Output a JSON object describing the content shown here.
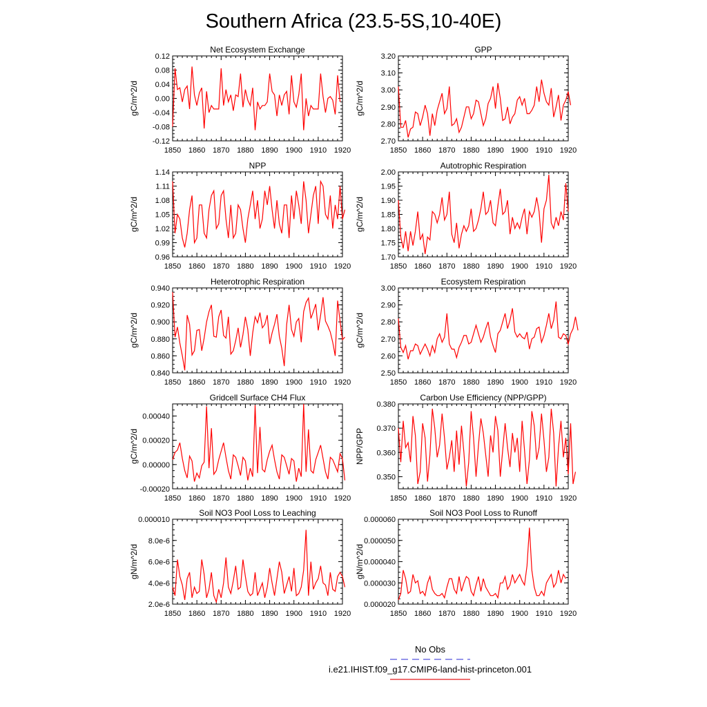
{
  "figure": {
    "title": "Southern Africa (23.5-5S,10-40E)",
    "legend": [
      {
        "label": "No Obs",
        "color": "#5555dd",
        "style": "dashed"
      },
      {
        "label": "i.e21.IHIST.f09_g17.CMIP6-land-hist-princeton.001",
        "color": "#e31a1c",
        "style": "solid"
      }
    ],
    "line_color": "#ff0000"
  },
  "chart_data": [
    {
      "type": "line",
      "title": "Net Ecosystem Exchange",
      "ylabel": "gC/m^2/d",
      "xlim": [
        1850,
        1920
      ],
      "ylim": [
        -0.12,
        0.12
      ],
      "xticks": [
        "1850",
        "1860",
        "1870",
        "1880",
        "1890",
        "1900",
        "1910",
        "1920"
      ],
      "yticks": [
        "-0.12",
        "-0.08",
        "-0.04",
        "0.00",
        "0.04",
        "0.08",
        "0.12"
      ],
      "series": [
        {
          "x_start": 1850,
          "values": [
            -0.08,
            0.085,
            0.025,
            0.03,
            -0.01,
            0.025,
            0.035,
            -0.03,
            0.09,
            0.01,
            -0.02,
            0.015,
            0.03,
            -0.085,
            0.02,
            -0.04,
            -0.02,
            -0.03,
            -0.03,
            -0.03,
            0.085,
            -0.02,
            0.025,
            -0.01,
            0.01,
            -0.035,
            0.01,
            0.005,
            0.07,
            -0.025,
            0.025,
            -0.005,
            -0.02,
            0.03,
            -0.09,
            -0.01,
            -0.03,
            -0.02,
            -0.02,
            -0.01,
            0.07,
            0.02,
            0.01,
            -0.05,
            0.01,
            -0.02,
            0.01,
            0.02,
            -0.045,
            0.065,
            -0.01,
            -0.025,
            0.01,
            0.07,
            -0.09,
            0.0,
            -0.05,
            -0.02,
            -0.03,
            -0.03,
            -0.03,
            0.07,
            0.005,
            -0.04,
            0.0,
            0.005,
            -0.005,
            -0.045,
            0.065,
            -0.01
          ]
        }
      ]
    },
    {
      "type": "line",
      "title": "GPP",
      "ylabel": "gC/m^2/d",
      "xlim": [
        1850,
        1920
      ],
      "ylim": [
        2.7,
        3.2
      ],
      "xticks": [
        "1850",
        "1860",
        "1870",
        "1880",
        "1890",
        "1900",
        "1910",
        "1920"
      ],
      "yticks": [
        "2.70",
        "2.80",
        "2.90",
        "3.00",
        "3.10",
        "3.20"
      ],
      "series": [
        {
          "x_start": 1850,
          "values": [
            3.02,
            2.78,
            2.78,
            2.82,
            2.72,
            2.77,
            2.78,
            2.87,
            2.86,
            2.79,
            2.84,
            2.91,
            2.86,
            2.73,
            2.86,
            2.79,
            2.88,
            2.93,
            2.98,
            2.86,
            2.89,
            3.02,
            2.79,
            2.8,
            2.83,
            2.75,
            2.78,
            2.84,
            2.9,
            2.9,
            2.83,
            2.86,
            2.94,
            2.93,
            2.86,
            2.79,
            2.83,
            2.92,
            2.95,
            3.02,
            2.89,
            3.04,
            2.95,
            2.82,
            2.83,
            2.9,
            2.8,
            2.84,
            2.86,
            2.94,
            2.96,
            2.91,
            2.95,
            2.86,
            2.86,
            2.88,
            2.91,
            3.02,
            2.93,
            3.06,
            2.98,
            2.93,
            2.91,
            3.01,
            2.84,
            2.9,
            2.97,
            2.82,
            2.91,
            2.94,
            2.99,
            2.91
          ]
        }
      ]
    },
    {
      "type": "line",
      "title": "NPP",
      "ylabel": "gC/m^2/d",
      "xlim": [
        1850,
        1920
      ],
      "ylim": [
        0.96,
        1.14
      ],
      "xticks": [
        "1850",
        "1860",
        "1870",
        "1880",
        "1890",
        "1900",
        "1910",
        "1920"
      ],
      "yticks": [
        "0.96",
        "0.99",
        "1.02",
        "1.05",
        "1.08",
        "1.11",
        "1.14"
      ],
      "series": [
        {
          "x_start": 1850,
          "values": [
            1.12,
            1.01,
            1.05,
            1.04,
            1.0,
            0.98,
            1.01,
            1.06,
            1.09,
            0.99,
            1.0,
            1.07,
            1.07,
            1.01,
            1.0,
            1.06,
            1.09,
            1.1,
            1.02,
            1.03,
            1.09,
            1.1,
            1.04,
            1.0,
            1.07,
            1.0,
            1.01,
            1.07,
            1.06,
            1.02,
            0.99,
            1.04,
            1.07,
            1.1,
            1.04,
            1.08,
            1.02,
            1.04,
            1.1,
            1.07,
            1.11,
            1.06,
            1.02,
            1.08,
            1.03,
            1.01,
            1.07,
            1.07,
            1.0,
            1.09,
            1.04,
            1.1,
            1.07,
            1.03,
            1.12,
            1.08,
            1.01,
            1.05,
            1.09,
            1.11,
            1.03,
            1.12,
            1.11,
            1.05,
            1.04,
            1.09,
            1.02,
            1.07,
            1.04,
            1.11,
            1.04,
            1.06
          ]
        }
      ]
    },
    {
      "type": "line",
      "title": "Autotrophic Respiration",
      "ylabel": "gC/m^2/d",
      "xlim": [
        1850,
        1920
      ],
      "ylim": [
        1.7,
        2.0
      ],
      "xticks": [
        "1850",
        "1860",
        "1870",
        "1880",
        "1890",
        "1900",
        "1910",
        "1920"
      ],
      "yticks": [
        "1.70",
        "1.75",
        "1.80",
        "1.85",
        "1.90",
        "1.95",
        "2.00"
      ],
      "series": [
        {
          "x_start": 1850,
          "values": [
            1.9,
            1.77,
            1.73,
            1.79,
            1.72,
            1.79,
            1.74,
            1.79,
            1.86,
            1.76,
            1.78,
            1.71,
            1.77,
            1.76,
            1.86,
            1.85,
            1.82,
            1.85,
            1.91,
            1.83,
            1.85,
            1.93,
            1.78,
            1.75,
            1.82,
            1.73,
            1.78,
            1.81,
            1.79,
            1.81,
            1.87,
            1.79,
            1.8,
            1.83,
            1.87,
            1.93,
            1.85,
            1.86,
            1.9,
            1.82,
            1.81,
            1.88,
            1.94,
            1.85,
            1.86,
            1.9,
            1.78,
            1.84,
            1.8,
            1.82,
            1.8,
            1.84,
            1.87,
            1.78,
            1.86,
            1.84,
            1.86,
            1.91,
            1.86,
            1.75,
            1.87,
            1.9,
            1.99,
            1.82,
            1.8,
            1.84,
            1.81,
            1.86,
            1.83,
            1.96,
            1.86
          ]
        }
      ]
    },
    {
      "type": "line",
      "title": "Heterotrophic Respiration",
      "ylabel": "gC/m^2/d",
      "xlim": [
        1850,
        1920
      ],
      "ylim": [
        0.84,
        0.94
      ],
      "xticks": [
        "1850",
        "1860",
        "1870",
        "1880",
        "1890",
        "1900",
        "1910",
        "1920"
      ],
      "yticks": [
        "0.840",
        "0.860",
        "0.880",
        "0.900",
        "0.920",
        "0.940"
      ],
      "series": [
        {
          "x_start": 1850,
          "values": [
            0.935,
            0.882,
            0.894,
            0.875,
            0.86,
            0.843,
            0.908,
            0.897,
            0.861,
            0.866,
            0.89,
            0.891,
            0.866,
            0.881,
            0.9,
            0.912,
            0.92,
            0.883,
            0.882,
            0.906,
            0.914,
            0.884,
            0.881,
            0.906,
            0.862,
            0.866,
            0.878,
            0.893,
            0.87,
            0.885,
            0.906,
            0.891,
            0.86,
            0.887,
            0.906,
            0.899,
            0.911,
            0.893,
            0.897,
            0.908,
            0.874,
            0.887,
            0.897,
            0.909,
            0.883,
            0.869,
            0.848,
            0.897,
            0.92,
            0.891,
            0.883,
            0.9,
            0.904,
            0.876,
            0.912,
            0.923,
            0.928,
            0.904,
            0.912,
            0.921,
            0.89,
            0.908,
            0.929,
            0.901,
            0.895,
            0.888,
            0.876,
            0.86,
            0.925,
            0.901,
            0.879,
            0.882
          ]
        }
      ]
    },
    {
      "type": "line",
      "title": "Ecosystem Respiration",
      "ylabel": "gC/m^2/d",
      "xlim": [
        1850,
        1920
      ],
      "ylim": [
        2.5,
        3.0
      ],
      "xticks": [
        "1850",
        "1860",
        "1870",
        "1880",
        "1890",
        "1900",
        "1910",
        "1920"
      ],
      "yticks": [
        "2.50",
        "2.60",
        "2.70",
        "2.80",
        "2.90",
        "3.00"
      ],
      "series": [
        {
          "x_start": 1850,
          "values": [
            2.82,
            2.65,
            2.62,
            2.66,
            2.58,
            2.63,
            2.63,
            2.67,
            2.66,
            2.61,
            2.64,
            2.67,
            2.64,
            2.6,
            2.66,
            2.62,
            2.7,
            2.73,
            2.68,
            2.71,
            2.85,
            2.67,
            2.64,
            2.64,
            2.59,
            2.65,
            2.68,
            2.72,
            2.72,
            2.67,
            2.68,
            2.73,
            2.78,
            2.73,
            2.68,
            2.71,
            2.76,
            2.8,
            2.71,
            2.66,
            2.62,
            2.73,
            2.75,
            2.8,
            2.85,
            2.76,
            2.81,
            2.88,
            2.74,
            2.71,
            2.73,
            2.71,
            2.7,
            2.74,
            2.64,
            2.7,
            2.71,
            2.76,
            2.77,
            2.68,
            2.72,
            2.78,
            2.85,
            2.76,
            2.81,
            2.92,
            2.71,
            2.7,
            2.73,
            2.72,
            2.67,
            2.73,
            2.76,
            2.83,
            2.75
          ]
        }
      ]
    },
    {
      "type": "line",
      "title": "Gridcell Surface CH4 Flux",
      "ylabel": "gC/m^2/d",
      "xlim": [
        1850,
        1920
      ],
      "ylim": [
        -0.0002,
        0.0005
      ],
      "xticks": [
        "1850",
        "1860",
        "1870",
        "1880",
        "1890",
        "1900",
        "1910",
        "1920"
      ],
      "yticks": [
        "-0.00020",
        "0.00000",
        "0.00020",
        "0.00040"
      ],
      "series": [
        {
          "x_start": 1850,
          "values": [
            4e-05,
            0.0001,
            0.00012,
            0.00018,
            5e-05,
            -5e-05,
            -0.00011,
            7e-05,
            3e-05,
            -0.00014,
            -7e-05,
            -0.00011,
            -1e-05,
            2e-05,
            0.00048,
            -3e-05,
            0.0003,
            -8e-05,
            -5e-05,
            4e-05,
            0.00011,
            0.00018,
            6e-05,
            -5e-05,
            -0.00012,
            8e-05,
            6e-05,
            -1e-05,
            -9e-05,
            6e-05,
            3e-05,
            -0.00013,
            -3e-05,
            -0.0001,
            0.00049,
            -7e-05,
            0.00031,
            -4e-05,
            -6e-05,
            4e-05,
            0.00011,
            0.00016,
            4e-05,
            -6e-05,
            -0.00012,
            8e-05,
            6e-05,
            -1e-05,
            -8e-05,
            5e-05,
            3e-05,
            -0.00014,
            -3e-05,
            -0.0001,
            0.0005,
            -6e-05,
            0.00029,
            -5e-05,
            -7e-05,
            4e-05,
            0.0001,
            0.00016,
            5e-05,
            -6e-05,
            -0.00012,
            6e-05,
            4e-05,
            -1e-05,
            -6e-05,
            9e-05,
            5e-05,
            -0.00013
          ]
        }
      ]
    },
    {
      "type": "line",
      "title": "Carbon Use Efficiency (NPP/GPP)",
      "ylabel": "NPP/GPP",
      "xlim": [
        1850,
        1920
      ],
      "ylim": [
        0.345,
        0.38
      ],
      "xticks": [
        "1850",
        "1860",
        "1870",
        "1880",
        "1890",
        "1900",
        "1910",
        "1920"
      ],
      "yticks": [
        "0.350",
        "0.360",
        "0.370",
        "0.380"
      ],
      "series": [
        {
          "x_start": 1850,
          "values": [
            0.37,
            0.356,
            0.373,
            0.362,
            0.364,
            0.356,
            0.375,
            0.367,
            0.347,
            0.352,
            0.372,
            0.366,
            0.348,
            0.359,
            0.378,
            0.37,
            0.358,
            0.363,
            0.376,
            0.366,
            0.353,
            0.358,
            0.365,
            0.352,
            0.369,
            0.355,
            0.371,
            0.36,
            0.346,
            0.356,
            0.377,
            0.366,
            0.35,
            0.363,
            0.374,
            0.368,
            0.359,
            0.35,
            0.367,
            0.36,
            0.375,
            0.369,
            0.35,
            0.361,
            0.372,
            0.362,
            0.354,
            0.368,
            0.36,
            0.366,
            0.352,
            0.373,
            0.361,
            0.347,
            0.357,
            0.377,
            0.371,
            0.357,
            0.362,
            0.376,
            0.365,
            0.352,
            0.358,
            0.378,
            0.368,
            0.346,
            0.362,
            0.373,
            0.358,
            0.366,
            0.351,
            0.372,
            0.347,
            0.352
          ]
        }
      ]
    },
    {
      "type": "line",
      "title": "Soil NO3 Pool Loss to Leaching",
      "ylabel": "gN/m^2/d",
      "xlim": [
        1850,
        1920
      ],
      "ylim": [
        2e-06,
        1e-05
      ],
      "xticks": [
        "1850",
        "1860",
        "1870",
        "1880",
        "1890",
        "1900",
        "1910",
        "1920"
      ],
      "yticks": [
        "2.0e-6",
        "4.0e-6",
        "6.0e-6",
        "8.0e-6",
        "0.000010"
      ],
      "series": [
        {
          "x_start": 1850,
          "values": [
            3.6e-06,
            2.8e-06,
            6.2e-06,
            4.6e-06,
            3.8e-06,
            2.4e-06,
            4.4e-06,
            5e-06,
            2.6e-06,
            3.6e-06,
            3e-06,
            3.2e-06,
            6.2e-06,
            4.8e-06,
            2.6e-06,
            3.4e-06,
            5e-06,
            2.8e-06,
            2.2e-06,
            3.4e-06,
            2.6e-06,
            4e-06,
            6.4e-06,
            3.6e-06,
            3e-06,
            4.2e-06,
            5.6e-06,
            3.4e-06,
            3.6e-06,
            6.2e-06,
            4.6e-06,
            3.2e-06,
            2.8e-06,
            3e-06,
            5e-06,
            2.8e-06,
            3.4e-06,
            4e-06,
            2.6e-06,
            3.6e-06,
            5.4e-06,
            4e-06,
            2.8e-06,
            4.4e-06,
            6e-06,
            5e-06,
            3e-06,
            3.8e-06,
            4.6e-06,
            3.2e-06,
            5.4e-06,
            2.8e-06,
            3e-06,
            3.6e-06,
            5.2e-06,
            9e-06,
            2.8e-06,
            6e-06,
            3.4e-06,
            4e-06,
            4.4e-06,
            5.6e-06,
            4e-06,
            3.8e-06,
            2.8e-06,
            5e-06,
            3.4e-06,
            3.2e-06,
            4.6e-06,
            5e-06,
            4.6e-06,
            3.6e-06
          ]
        }
      ]
    },
    {
      "type": "line",
      "title": "Soil NO3 Pool Loss to Runoff",
      "ylabel": "gN/m^2/d",
      "xlim": [
        1850,
        1920
      ],
      "ylim": [
        2e-05,
        6e-05
      ],
      "xticks": [
        "1850",
        "1860",
        "1870",
        "1880",
        "1890",
        "1900",
        "1910",
        "1920"
      ],
      "yticks": [
        "0.000020",
        "0.000030",
        "0.000040",
        "0.000050",
        "0.000060"
      ],
      "series": [
        {
          "x_start": 1850,
          "values": [
            2.2e-05,
            2.5e-05,
            3.6e-05,
            3.2e-05,
            2.5e-05,
            2.6e-05,
            3.4e-05,
            3e-05,
            3.1e-05,
            2.5e-05,
            2.6e-05,
            2.4e-05,
            3e-05,
            3.3e-05,
            2.7e-05,
            2.5e-05,
            2.4e-05,
            2.4e-05,
            2.5e-05,
            2.3e-05,
            2.8e-05,
            3.2e-05,
            3.2e-05,
            2.7e-05,
            2.5e-05,
            3.3e-05,
            2.6e-05,
            3e-05,
            3.3e-05,
            3.2e-05,
            2.6e-05,
            2.4e-05,
            2.9e-05,
            3.3e-05,
            2.6e-05,
            3.2e-05,
            2.8e-05,
            2.6e-05,
            2.4e-05,
            2.4e-05,
            2.5e-05,
            2.3e-05,
            3e-05,
            3e-05,
            3.3e-05,
            2.7e-05,
            2.9e-05,
            3.4e-05,
            3e-05,
            3.2e-05,
            3.4e-05,
            3.1e-05,
            2.9e-05,
            3.8e-05,
            5.6e-05,
            3.6e-05,
            2.8e-05,
            2.4e-05,
            2.4e-05,
            2.6e-05,
            2.4e-05,
            3e-05,
            3.2e-05,
            3.4e-05,
            2.8e-05,
            3e-05,
            3.6e-05,
            3e-05,
            3.4e-05,
            3.2e-05
          ]
        }
      ]
    }
  ]
}
